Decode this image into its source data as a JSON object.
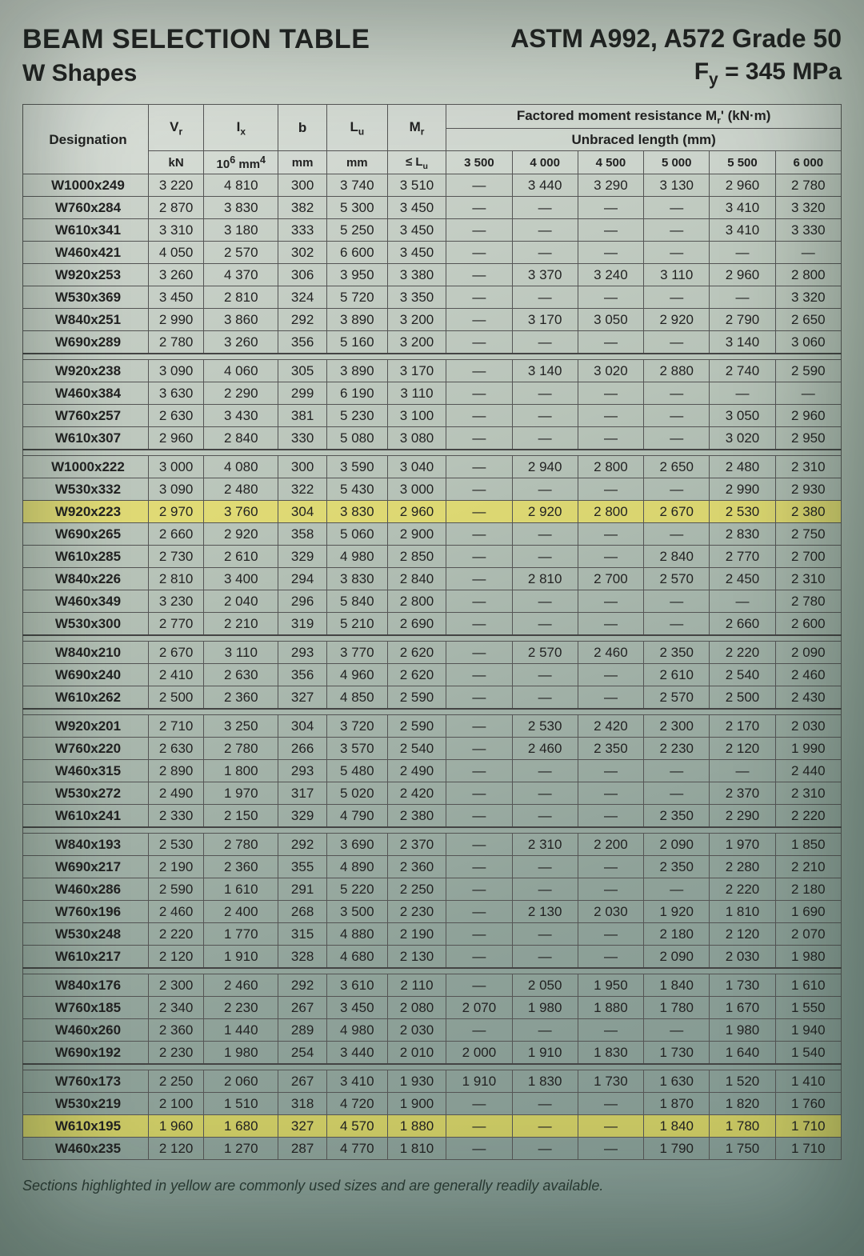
{
  "header": {
    "title_left": "BEAM SELECTION TABLE",
    "subtitle_left": "W Shapes",
    "title_right": "ASTM A992, A572 Grade 50",
    "subtitle_right_html": "F<sub>y</sub> = 345 MPa"
  },
  "columns": {
    "designation": "Designation",
    "Vr_html": "V<sub>r</sub>",
    "Ix_html": "I<sub>x</sub>",
    "b": "b",
    "Lu_html": "L<sub>u</sub>",
    "Mr_header_html": "M<sub>r</sub>",
    "factored_label_html": "Factored moment resistance M<sub>r</sub>' (kN·m)",
    "unbraced_label": "Unbraced length (mm)",
    "units": {
      "Vr": "kN",
      "Ix_html": "10<sup>6</sup> mm<sup>4</sup>",
      "b": "mm",
      "Lu": "mm",
      "leLu_html": "≤ L<sub>u</sub>"
    },
    "moment_lengths": [
      "3 500",
      "4 000",
      "4 500",
      "5 000",
      "5 500",
      "6 000"
    ]
  },
  "dash": "—",
  "highlight_color": "#ffe838",
  "groups": [
    {
      "rows": [
        {
          "d": "W1000x249",
          "v": "3 220",
          "ix": "4 810",
          "b": "300",
          "lu": "3 740",
          "mr0": "3 510",
          "mr": [
            "—",
            "3 440",
            "3 290",
            "3 130",
            "2 960",
            "2 780"
          ]
        },
        {
          "d": "W760x284",
          "v": "2 870",
          "ix": "3 830",
          "b": "382",
          "lu": "5 300",
          "mr0": "3 450",
          "mr": [
            "—",
            "—",
            "—",
            "—",
            "3 410",
            "3 320"
          ]
        },
        {
          "d": "W610x341",
          "v": "3 310",
          "ix": "3 180",
          "b": "333",
          "lu": "5 250",
          "mr0": "3 450",
          "mr": [
            "—",
            "—",
            "—",
            "—",
            "3 410",
            "3 330"
          ]
        },
        {
          "d": "W460x421",
          "v": "4 050",
          "ix": "2 570",
          "b": "302",
          "lu": "6 600",
          "mr0": "3 450",
          "mr": [
            "—",
            "—",
            "—",
            "—",
            "—",
            "—"
          ]
        },
        {
          "d": "W920x253",
          "v": "3 260",
          "ix": "4 370",
          "b": "306",
          "lu": "3 950",
          "mr0": "3 380",
          "mr": [
            "—",
            "3 370",
            "3 240",
            "3 110",
            "2 960",
            "2 800"
          ]
        },
        {
          "d": "W530x369",
          "v": "3 450",
          "ix": "2 810",
          "b": "324",
          "lu": "5 720",
          "mr0": "3 350",
          "mr": [
            "—",
            "—",
            "—",
            "—",
            "—",
            "3 320"
          ]
        },
        {
          "d": "W840x251",
          "v": "2 990",
          "ix": "3 860",
          "b": "292",
          "lu": "3 890",
          "mr0": "3 200",
          "mr": [
            "—",
            "3 170",
            "3 050",
            "2 920",
            "2 790",
            "2 650"
          ]
        },
        {
          "d": "W690x289",
          "v": "2 780",
          "ix": "3 260",
          "b": "356",
          "lu": "5 160",
          "mr0": "3 200",
          "mr": [
            "—",
            "—",
            "—",
            "—",
            "3 140",
            "3 060"
          ]
        }
      ]
    },
    {
      "rows": [
        {
          "d": "W920x238",
          "v": "3 090",
          "ix": "4 060",
          "b": "305",
          "lu": "3 890",
          "mr0": "3 170",
          "mr": [
            "—",
            "3 140",
            "3 020",
            "2 880",
            "2 740",
            "2 590"
          ]
        },
        {
          "d": "W460x384",
          "v": "3 630",
          "ix": "2 290",
          "b": "299",
          "lu": "6 190",
          "mr0": "3 110",
          "mr": [
            "—",
            "—",
            "—",
            "—",
            "—",
            "—"
          ]
        },
        {
          "d": "W760x257",
          "v": "2 630",
          "ix": "3 430",
          "b": "381",
          "lu": "5 230",
          "mr0": "3 100",
          "mr": [
            "—",
            "—",
            "—",
            "—",
            "3 050",
            "2 960"
          ]
        },
        {
          "d": "W610x307",
          "v": "2 960",
          "ix": "2 840",
          "b": "330",
          "lu": "5 080",
          "mr0": "3 080",
          "mr": [
            "—",
            "—",
            "—",
            "—",
            "3 020",
            "2 950"
          ]
        }
      ]
    },
    {
      "rows": [
        {
          "d": "W1000x222",
          "v": "3 000",
          "ix": "4 080",
          "b": "300",
          "lu": "3 590",
          "mr0": "3 040",
          "mr": [
            "—",
            "2 940",
            "2 800",
            "2 650",
            "2 480",
            "2 310"
          ]
        },
        {
          "d": "W530x332",
          "v": "3 090",
          "ix": "2 480",
          "b": "322",
          "lu": "5 430",
          "mr0": "3 000",
          "mr": [
            "—",
            "—",
            "—",
            "—",
            "2 990",
            "2 930"
          ]
        },
        {
          "d": "W920x223",
          "v": "2 970",
          "ix": "3 760",
          "b": "304",
          "lu": "3 830",
          "mr0": "2 960",
          "mr": [
            "—",
            "2 920",
            "2 800",
            "2 670",
            "2 530",
            "2 380"
          ],
          "hl": true
        },
        {
          "d": "W690x265",
          "v": "2 660",
          "ix": "2 920",
          "b": "358",
          "lu": "5 060",
          "mr0": "2 900",
          "mr": [
            "—",
            "—",
            "—",
            "—",
            "2 830",
            "2 750"
          ]
        },
        {
          "d": "W610x285",
          "v": "2 730",
          "ix": "2 610",
          "b": "329",
          "lu": "4 980",
          "mr0": "2 850",
          "mr": [
            "—",
            "—",
            "—",
            "2 840",
            "2 770",
            "2 700"
          ]
        },
        {
          "d": "W840x226",
          "v": "2 810",
          "ix": "3 400",
          "b": "294",
          "lu": "3 830",
          "mr0": "2 840",
          "mr": [
            "—",
            "2 810",
            "2 700",
            "2 570",
            "2 450",
            "2 310"
          ]
        },
        {
          "d": "W460x349",
          "v": "3 230",
          "ix": "2 040",
          "b": "296",
          "lu": "5 840",
          "mr0": "2 800",
          "mr": [
            "—",
            "—",
            "—",
            "—",
            "—",
            "2 780"
          ]
        },
        {
          "d": "W530x300",
          "v": "2 770",
          "ix": "2 210",
          "b": "319",
          "lu": "5 210",
          "mr0": "2 690",
          "mr": [
            "—",
            "—",
            "—",
            "—",
            "2 660",
            "2 600"
          ]
        }
      ]
    },
    {
      "rows": [
        {
          "d": "W840x210",
          "v": "2 670",
          "ix": "3 110",
          "b": "293",
          "lu": "3 770",
          "mr0": "2 620",
          "mr": [
            "—",
            "2 570",
            "2 460",
            "2 350",
            "2 220",
            "2 090"
          ]
        },
        {
          "d": "W690x240",
          "v": "2 410",
          "ix": "2 630",
          "b": "356",
          "lu": "4 960",
          "mr0": "2 620",
          "mr": [
            "—",
            "—",
            "—",
            "2 610",
            "2 540",
            "2 460"
          ]
        },
        {
          "d": "W610x262",
          "v": "2 500",
          "ix": "2 360",
          "b": "327",
          "lu": "4 850",
          "mr0": "2 590",
          "mr": [
            "—",
            "—",
            "—",
            "2 570",
            "2 500",
            "2 430"
          ]
        }
      ]
    },
    {
      "rows": [
        {
          "d": "W920x201",
          "v": "2 710",
          "ix": "3 250",
          "b": "304",
          "lu": "3 720",
          "mr0": "2 590",
          "mr": [
            "—",
            "2 530",
            "2 420",
            "2 300",
            "2 170",
            "2 030"
          ]
        },
        {
          "d": "W760x220",
          "v": "2 630",
          "ix": "2 780",
          "b": "266",
          "lu": "3 570",
          "mr0": "2 540",
          "mr": [
            "—",
            "2 460",
            "2 350",
            "2 230",
            "2 120",
            "1 990"
          ]
        },
        {
          "d": "W460x315",
          "v": "2 890",
          "ix": "1 800",
          "b": "293",
          "lu": "5 480",
          "mr0": "2 490",
          "mr": [
            "—",
            "—",
            "—",
            "—",
            "—",
            "2 440"
          ]
        },
        {
          "d": "W530x272",
          "v": "2 490",
          "ix": "1 970",
          "b": "317",
          "lu": "5 020",
          "mr0": "2 420",
          "mr": [
            "—",
            "—",
            "—",
            "—",
            "2 370",
            "2 310"
          ]
        },
        {
          "d": "W610x241",
          "v": "2 330",
          "ix": "2 150",
          "b": "329",
          "lu": "4 790",
          "mr0": "2 380",
          "mr": [
            "—",
            "—",
            "—",
            "2 350",
            "2 290",
            "2 220"
          ]
        }
      ]
    },
    {
      "rows": [
        {
          "d": "W840x193",
          "v": "2 530",
          "ix": "2 780",
          "b": "292",
          "lu": "3 690",
          "mr0": "2 370",
          "mr": [
            "—",
            "2 310",
            "2 200",
            "2 090",
            "1 970",
            "1 850"
          ]
        },
        {
          "d": "W690x217",
          "v": "2 190",
          "ix": "2 360",
          "b": "355",
          "lu": "4 890",
          "mr0": "2 360",
          "mr": [
            "—",
            "—",
            "—",
            "2 350",
            "2 280",
            "2 210"
          ]
        },
        {
          "d": "W460x286",
          "v": "2 590",
          "ix": "1 610",
          "b": "291",
          "lu": "5 220",
          "mr0": "2 250",
          "mr": [
            "—",
            "—",
            "—",
            "—",
            "2 220",
            "2 180"
          ]
        },
        {
          "d": "W760x196",
          "v": "2 460",
          "ix": "2 400",
          "b": "268",
          "lu": "3 500",
          "mr0": "2 230",
          "mr": [
            "—",
            "2 130",
            "2 030",
            "1 920",
            "1 810",
            "1 690"
          ]
        },
        {
          "d": "W530x248",
          "v": "2 220",
          "ix": "1 770",
          "b": "315",
          "lu": "4 880",
          "mr0": "2 190",
          "mr": [
            "—",
            "—",
            "—",
            "2 180",
            "2 120",
            "2 070"
          ]
        },
        {
          "d": "W610x217",
          "v": "2 120",
          "ix": "1 910",
          "b": "328",
          "lu": "4 680",
          "mr0": "2 130",
          "mr": [
            "—",
            "—",
            "—",
            "2 090",
            "2 030",
            "1 980"
          ]
        }
      ]
    },
    {
      "rows": [
        {
          "d": "W840x176",
          "v": "2 300",
          "ix": "2 460",
          "b": "292",
          "lu": "3 610",
          "mr0": "2 110",
          "mr": [
            "—",
            "2 050",
            "1 950",
            "1 840",
            "1 730",
            "1 610"
          ]
        },
        {
          "d": "W760x185",
          "v": "2 340",
          "ix": "2 230",
          "b": "267",
          "lu": "3 450",
          "mr0": "2 080",
          "mr": [
            "2 070",
            "1 980",
            "1 880",
            "1 780",
            "1 670",
            "1 550"
          ]
        },
        {
          "d": "W460x260",
          "v": "2 360",
          "ix": "1 440",
          "b": "289",
          "lu": "4 980",
          "mr0": "2 030",
          "mr": [
            "—",
            "—",
            "—",
            "—",
            "1 980",
            "1 940"
          ]
        },
        {
          "d": "W690x192",
          "v": "2 230",
          "ix": "1 980",
          "b": "254",
          "lu": "3 440",
          "mr0": "2 010",
          "mr": [
            "2 000",
            "1 910",
            "1 830",
            "1 730",
            "1 640",
            "1 540"
          ]
        }
      ]
    },
    {
      "rows": [
        {
          "d": "W760x173",
          "v": "2 250",
          "ix": "2 060",
          "b": "267",
          "lu": "3 410",
          "mr0": "1 930",
          "mr": [
            "1 910",
            "1 830",
            "1 730",
            "1 630",
            "1 520",
            "1 410"
          ]
        },
        {
          "d": "W530x219",
          "v": "2 100",
          "ix": "1 510",
          "b": "318",
          "lu": "4 720",
          "mr0": "1 900",
          "mr": [
            "—",
            "—",
            "—",
            "1 870",
            "1 820",
            "1 760"
          ]
        },
        {
          "d": "W610x195",
          "v": "1 960",
          "ix": "1 680",
          "b": "327",
          "lu": "4 570",
          "mr0": "1 880",
          "mr": [
            "—",
            "—",
            "—",
            "1 840",
            "1 780",
            "1 710"
          ],
          "hl": true
        },
        {
          "d": "W460x235",
          "v": "2 120",
          "ix": "1 270",
          "b": "287",
          "lu": "4 770",
          "mr0": "1 810",
          "mr": [
            "—",
            "—",
            "—",
            "1 790",
            "1 750",
            "1 710"
          ]
        }
      ]
    }
  ],
  "footnote": "Sections highlighted in yellow are commonly used sizes and are generally readily available."
}
